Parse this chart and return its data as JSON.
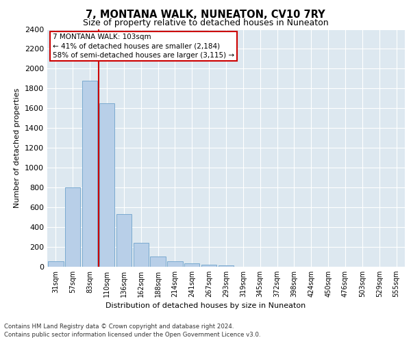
{
  "title": "7, MONTANA WALK, NUNEATON, CV10 7RY",
  "subtitle": "Size of property relative to detached houses in Nuneaton",
  "xlabel": "Distribution of detached houses by size in Nuneaton",
  "ylabel": "Number of detached properties",
  "bar_color": "#b8cfe8",
  "bar_edge_color": "#7aaad0",
  "categories": [
    "31sqm",
    "57sqm",
    "83sqm",
    "110sqm",
    "136sqm",
    "162sqm",
    "188sqm",
    "214sqm",
    "241sqm",
    "267sqm",
    "293sqm",
    "319sqm",
    "345sqm",
    "372sqm",
    "398sqm",
    "424sqm",
    "450sqm",
    "476sqm",
    "503sqm",
    "529sqm",
    "555sqm"
  ],
  "values": [
    55,
    800,
    1880,
    1650,
    535,
    240,
    105,
    55,
    35,
    20,
    15,
    0,
    0,
    0,
    0,
    0,
    0,
    0,
    0,
    0,
    0
  ],
  "ylim": [
    0,
    2400
  ],
  "yticks": [
    0,
    200,
    400,
    600,
    800,
    1000,
    1200,
    1400,
    1600,
    1800,
    2000,
    2200,
    2400
  ],
  "annotation_title": "7 MONTANA WALK: 103sqm",
  "annotation_line1": "← 41% of detached houses are smaller (2,184)",
  "annotation_line2": "58% of semi-detached houses are larger (3,115) →",
  "footer_line1": "Contains HM Land Registry data © Crown copyright and database right 2024.",
  "footer_line2": "Contains public sector information licensed under the Open Government Licence v3.0.",
  "plot_background": "#dde8f0",
  "grid_color": "white"
}
